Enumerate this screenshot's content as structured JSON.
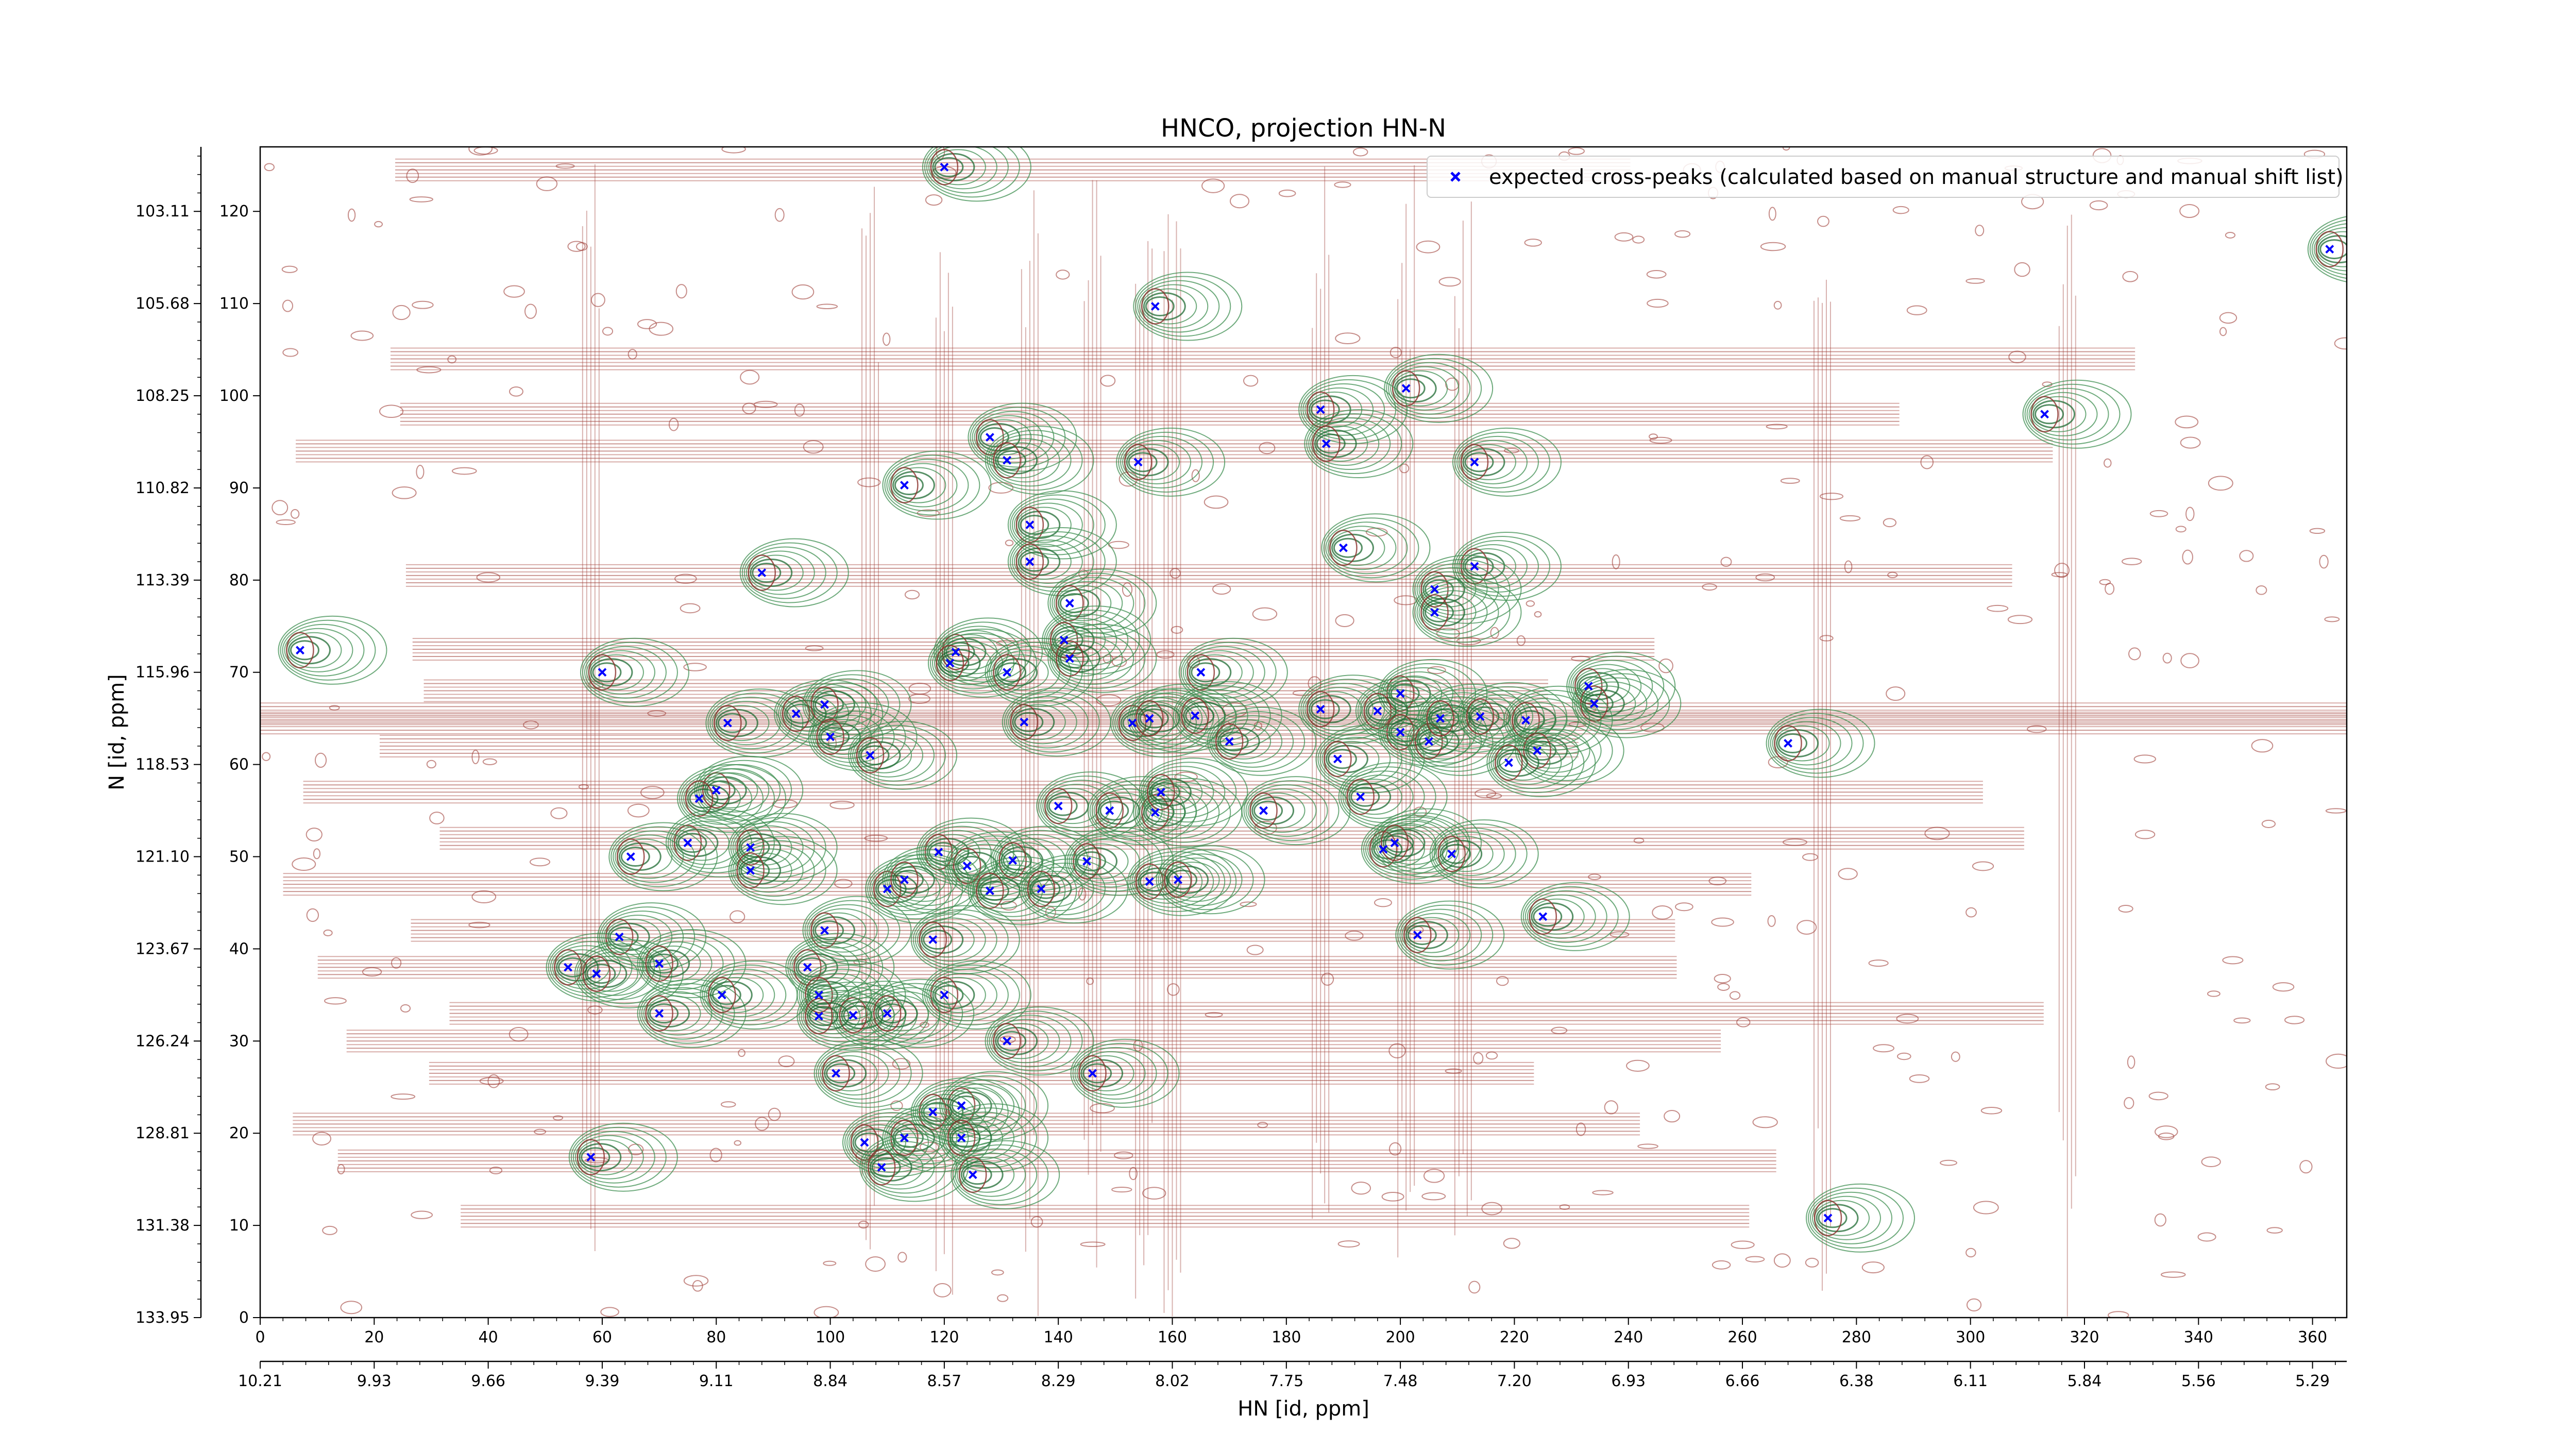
{
  "chart_data": {
    "type": "scatter",
    "title": "HNCO, projection HN-N",
    "xlabel": "HN [id, ppm]",
    "ylabel": "N [id, ppm]",
    "xlim": [
      0,
      366
    ],
    "ylim": [
      0,
      127
    ],
    "x_ticks": [
      0,
      20,
      40,
      60,
      80,
      100,
      120,
      140,
      160,
      180,
      200,
      220,
      240,
      260,
      280,
      300,
      320,
      340,
      360
    ],
    "y_ticks": [
      0,
      10,
      20,
      30,
      40,
      50,
      60,
      70,
      80,
      90,
      100,
      110,
      120
    ],
    "secondary_x_ticks": [
      {
        "x": 0,
        "label": "10.21"
      },
      {
        "x": 20,
        "label": "9.93"
      },
      {
        "x": 40,
        "label": "9.66"
      },
      {
        "x": 60,
        "label": "9.39"
      },
      {
        "x": 80,
        "label": "9.11"
      },
      {
        "x": 100,
        "label": "8.84"
      },
      {
        "x": 120,
        "label": "8.57"
      },
      {
        "x": 140,
        "label": "8.29"
      },
      {
        "x": 160,
        "label": "8.02"
      },
      {
        "x": 180,
        "label": "7.75"
      },
      {
        "x": 200,
        "label": "7.48"
      },
      {
        "x": 220,
        "label": "7.20"
      },
      {
        "x": 240,
        "label": "6.93"
      },
      {
        "x": 260,
        "label": "6.66"
      },
      {
        "x": 280,
        "label": "6.38"
      },
      {
        "x": 300,
        "label": "6.11"
      },
      {
        "x": 320,
        "label": "5.84"
      },
      {
        "x": 340,
        "label": "5.56"
      },
      {
        "x": 360,
        "label": "5.29"
      }
    ],
    "secondary_y_ticks": [
      {
        "y": 0,
        "label": "133.95"
      },
      {
        "y": 10,
        "label": "131.38"
      },
      {
        "y": 20,
        "label": "128.81"
      },
      {
        "y": 30,
        "label": "126.24"
      },
      {
        "y": 40,
        "label": "123.67"
      },
      {
        "y": 50,
        "label": "121.10"
      },
      {
        "y": 60,
        "label": "118.53"
      },
      {
        "y": 70,
        "label": "115.96"
      },
      {
        "y": 80,
        "label": "113.39"
      },
      {
        "y": 90,
        "label": "110.82"
      },
      {
        "y": 100,
        "label": "108.25"
      },
      {
        "y": 110,
        "label": "105.68"
      },
      {
        "y": 120,
        "label": "103.11"
      }
    ],
    "legend": {
      "location": "upper-right",
      "label": "expected cross-peaks (calculated based on manual structure and manual shift list)"
    },
    "series": [
      {
        "name": "expected cross-peaks (calculated based on manual structure and manual shift list)",
        "color": "#0000ff",
        "marker": "x",
        "points": [
          [
            120,
            124.8
          ],
          [
            363,
            115.9
          ],
          [
            157,
            109.7
          ],
          [
            313,
            98
          ],
          [
            201,
            100.8
          ],
          [
            186,
            98.5
          ],
          [
            128,
            95.5
          ],
          [
            131,
            93
          ],
          [
            154,
            92.8
          ],
          [
            187,
            94.8
          ],
          [
            213,
            92.8
          ],
          [
            113,
            90.3
          ],
          [
            135,
            86
          ],
          [
            190,
            83.5
          ],
          [
            213,
            81.5
          ],
          [
            88,
            80.8
          ],
          [
            135,
            82
          ],
          [
            142,
            77.5
          ],
          [
            206,
            79
          ],
          [
            206,
            76.5
          ],
          [
            7,
            72.4
          ],
          [
            60,
            70
          ],
          [
            122,
            72.2
          ],
          [
            121,
            71
          ],
          [
            131,
            70
          ],
          [
            141,
            73.5
          ],
          [
            142,
            71.5
          ],
          [
            165,
            70
          ],
          [
            200,
            67.7
          ],
          [
            233,
            68.5
          ],
          [
            234,
            66.6
          ],
          [
            82,
            64.5
          ],
          [
            94,
            65.5
          ],
          [
            99,
            66.5
          ],
          [
            100,
            63
          ],
          [
            107,
            61
          ],
          [
            134,
            64.6
          ],
          [
            153,
            64.5
          ],
          [
            156,
            65
          ],
          [
            164,
            65.3
          ],
          [
            170,
            62.5
          ],
          [
            186,
            66
          ],
          [
            196,
            65.8
          ],
          [
            200,
            63.5
          ],
          [
            205,
            62.5
          ],
          [
            207,
            65
          ],
          [
            214,
            65.2
          ],
          [
            222,
            64.8
          ],
          [
            224,
            61.5
          ],
          [
            219,
            60.2
          ],
          [
            189,
            60.6
          ],
          [
            268,
            62.3
          ],
          [
            80,
            57.2
          ],
          [
            77,
            56.3
          ],
          [
            176,
            55
          ],
          [
            193,
            56.5
          ],
          [
            140,
            55.5
          ],
          [
            149,
            55
          ],
          [
            157,
            54.8
          ],
          [
            158,
            57
          ],
          [
            75,
            51.5
          ],
          [
            65,
            50
          ],
          [
            86,
            51
          ],
          [
            86,
            48.5
          ],
          [
            119,
            50.5
          ],
          [
            124,
            49
          ],
          [
            132,
            49.6
          ],
          [
            145,
            49.5
          ],
          [
            156,
            47.3
          ],
          [
            161,
            47.5
          ],
          [
            197,
            50.8
          ],
          [
            199,
            51.5
          ],
          [
            209,
            50.3
          ],
          [
            110,
            46.5
          ],
          [
            113,
            47.5
          ],
          [
            128,
            46.3
          ],
          [
            137,
            46.5
          ],
          [
            63,
            41.3
          ],
          [
            99,
            42
          ],
          [
            118,
            41
          ],
          [
            203,
            41.5
          ],
          [
            225,
            43.5
          ],
          [
            54,
            38
          ],
          [
            59,
            37.3
          ],
          [
            70,
            38.4
          ],
          [
            96,
            38
          ],
          [
            70,
            33
          ],
          [
            81,
            35
          ],
          [
            98,
            35
          ],
          [
            104,
            32.8
          ],
          [
            120,
            35
          ],
          [
            98,
            32.7
          ],
          [
            110,
            33
          ],
          [
            131,
            30
          ],
          [
            146,
            26.5
          ],
          [
            101,
            26.5
          ],
          [
            123,
            23
          ],
          [
            118,
            22.3
          ],
          [
            106,
            19
          ],
          [
            113,
            19.5
          ],
          [
            123,
            19.5
          ],
          [
            109,
            16.3
          ],
          [
            125,
            15.5
          ],
          [
            58,
            17.4
          ],
          [
            275,
            10.8
          ]
        ]
      }
    ]
  }
}
